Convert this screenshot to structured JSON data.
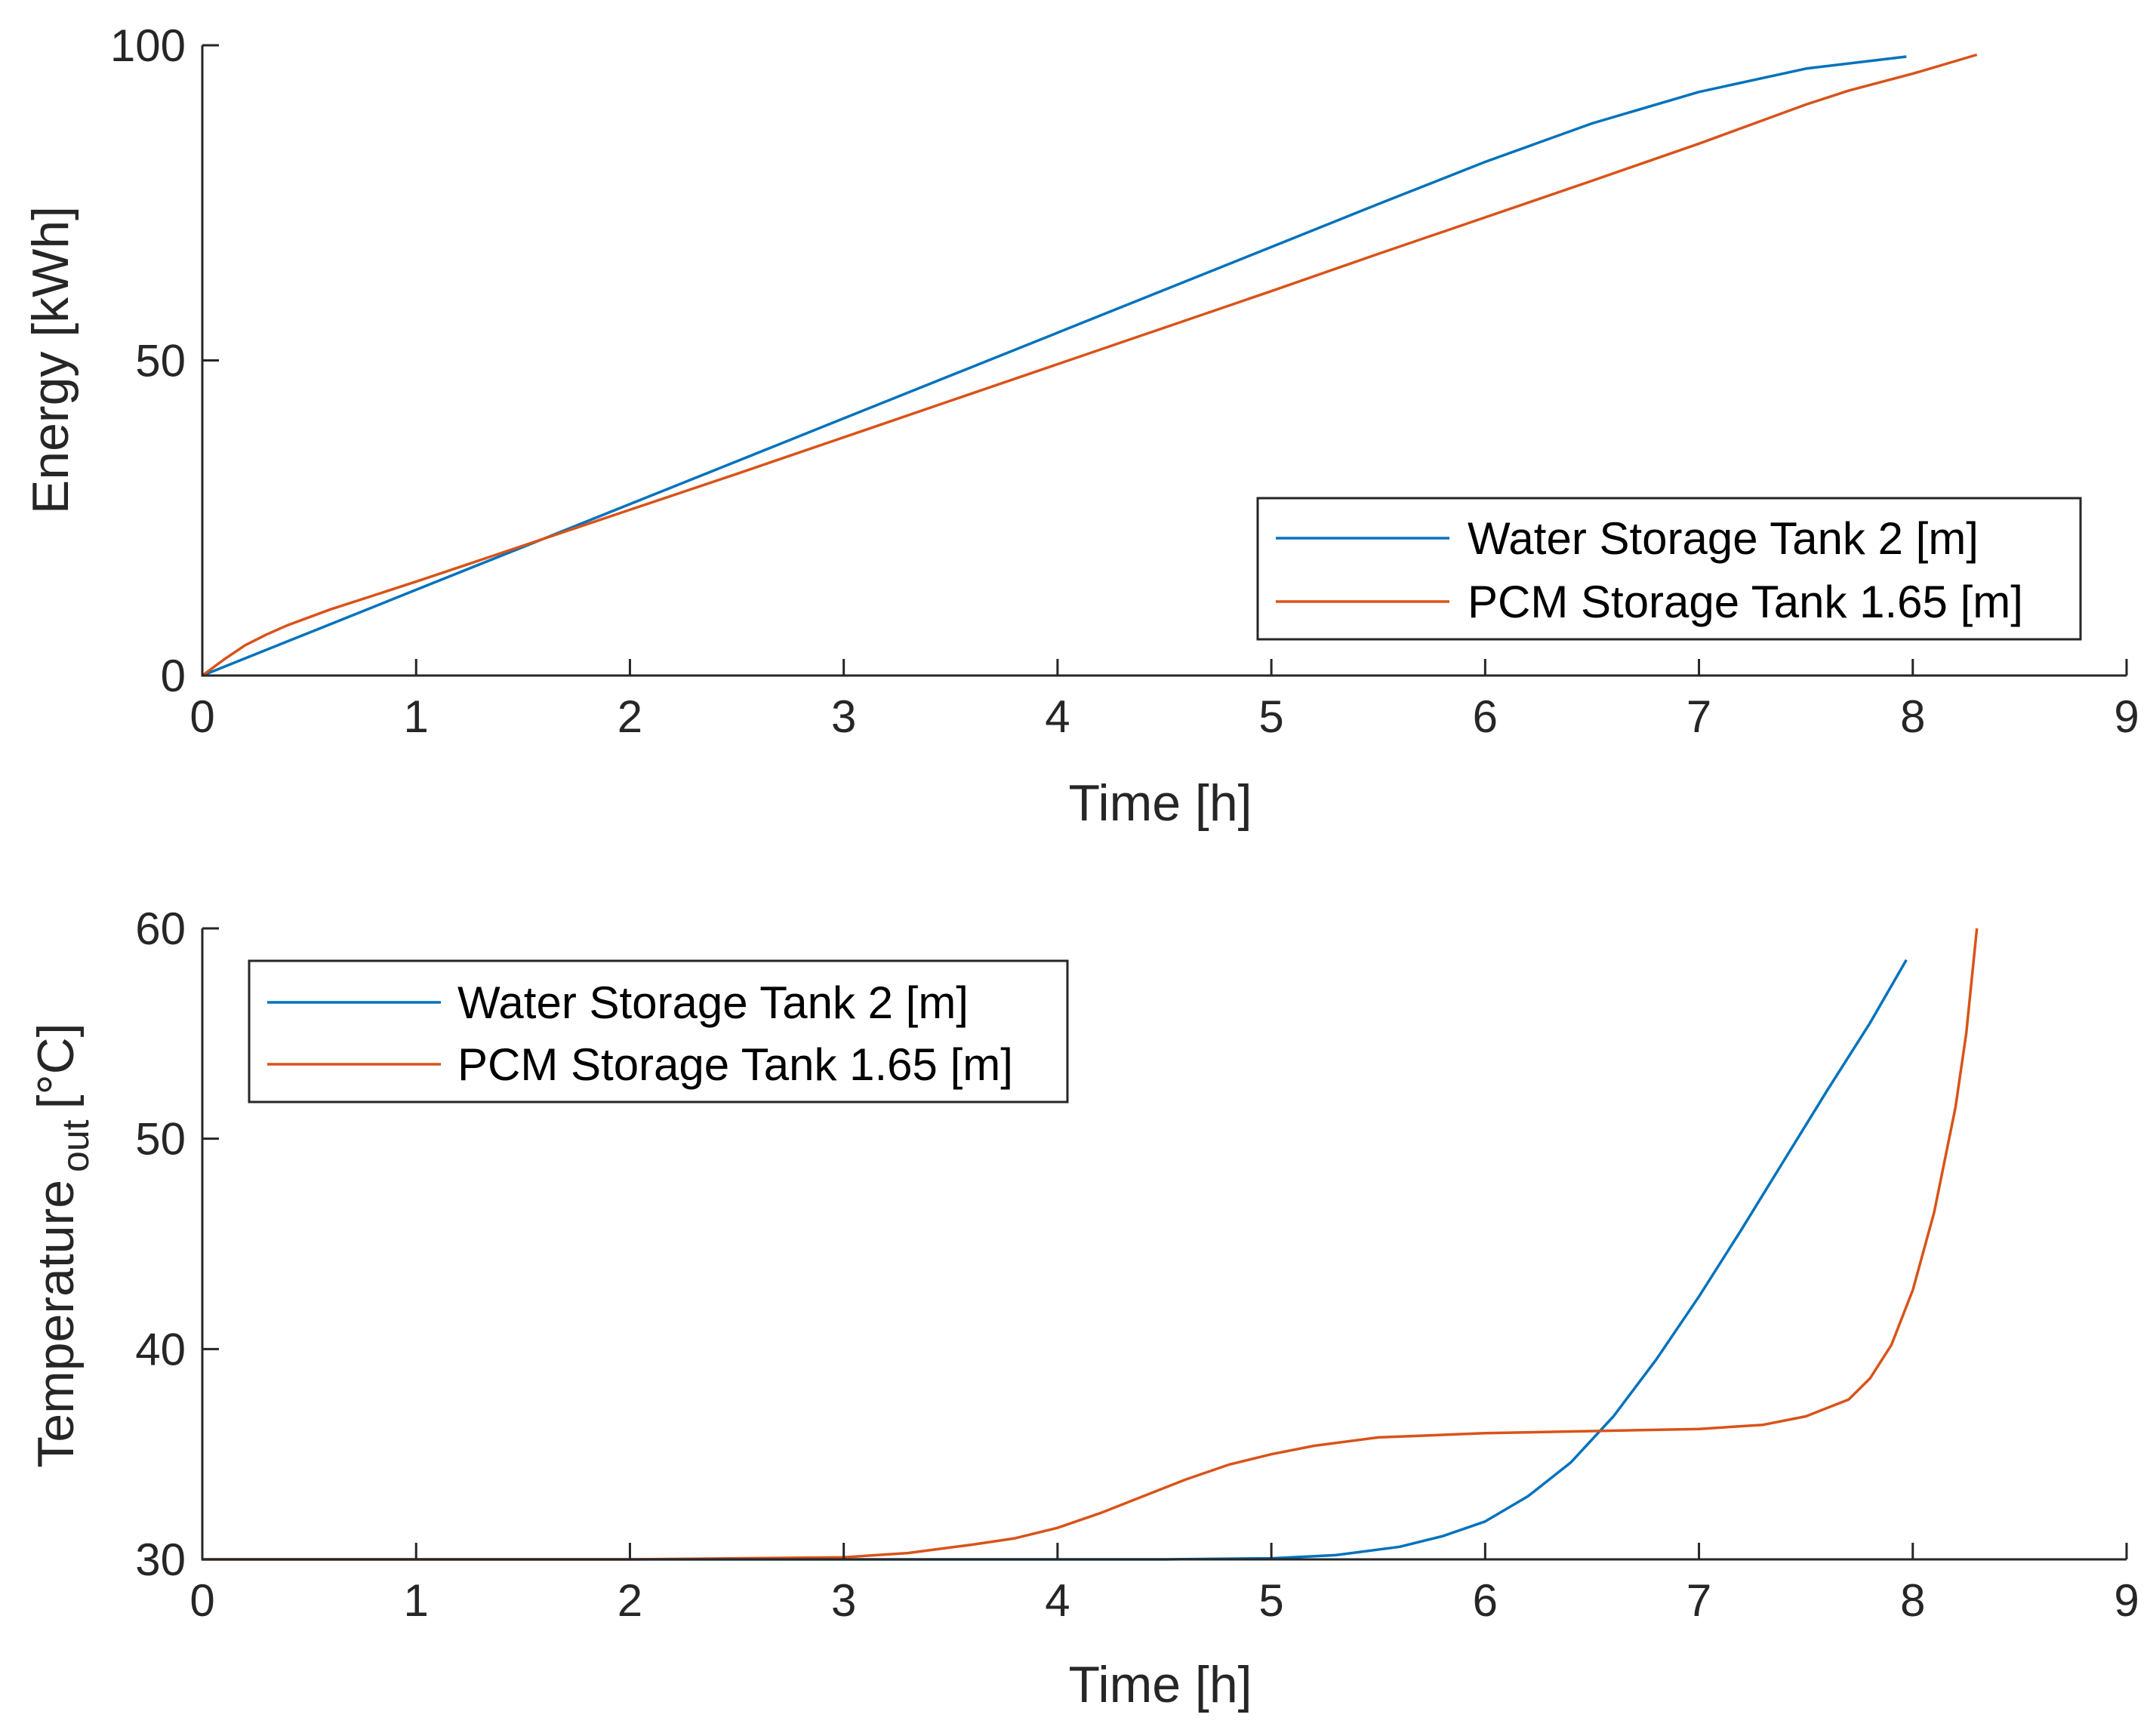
{
  "chart_data": [
    {
      "type": "line",
      "title": "",
      "xlabel": "Time [h]",
      "ylabel": "Energy [kWh]",
      "xlim": [
        0,
        9
      ],
      "ylim": [
        0,
        100
      ],
      "xticks": [
        "0",
        "1",
        "2",
        "3",
        "4",
        "5",
        "6",
        "7",
        "8",
        "9"
      ],
      "yticks": [
        "0",
        "50",
        "100"
      ],
      "grid": false,
      "legend_position": "bottom-right",
      "series": [
        {
          "name": "Water Storage Tank 2 [m]",
          "color": "#0072BD",
          "x": [
            0,
            0.5,
            1,
            1.5,
            2,
            2.5,
            3,
            3.5,
            4,
            4.5,
            5,
            5.5,
            6,
            6.5,
            7,
            7.5,
            7.97
          ],
          "y": [
            0,
            6.8,
            13.6,
            20.4,
            27.2,
            34,
            40.8,
            47.6,
            54.4,
            61.2,
            68,
            74.8,
            81.5,
            87.6,
            92.6,
            96.3,
            98.2
          ]
        },
        {
          "name": "PCM Storage Tank 1.65 [m]",
          "color": "#D95319",
          "x": [
            0,
            0.1,
            0.2,
            0.3,
            0.4,
            0.6,
            0.8,
            1,
            1.5,
            2,
            2.5,
            3,
            3.5,
            4,
            4.5,
            5,
            5.5,
            6,
            6.5,
            7,
            7.5,
            7.7,
            8,
            8.3
          ],
          "y": [
            0,
            2.5,
            4.8,
            6.5,
            8,
            10.5,
            12.7,
            14.9,
            20.6,
            26.3,
            32,
            37.8,
            43.6,
            49.4,
            55.2,
            61,
            66.9,
            72.7,
            78.5,
            84.4,
            90.6,
            92.8,
            95.5,
            98.5
          ]
        }
      ]
    },
    {
      "type": "line",
      "title": "",
      "xlabel": "Time [h]",
      "ylabel_main": "Temperature",
      "ylabel_sub": "out",
      "ylabel_unit": "[°C]",
      "xlim": [
        0,
        9
      ],
      "ylim": [
        30,
        60
      ],
      "xticks": [
        "0",
        "1",
        "2",
        "3",
        "4",
        "5",
        "6",
        "7",
        "8",
        "9"
      ],
      "yticks": [
        "30",
        "40",
        "50",
        "60"
      ],
      "grid": false,
      "legend_position": "top-left",
      "series": [
        {
          "name": "Water Storage Tank 2 [m]",
          "color": "#0072BD",
          "x": [
            0,
            1,
            2,
            3,
            4,
            4.5,
            5,
            5.3,
            5.6,
            5.8,
            6,
            6.2,
            6.4,
            6.6,
            6.8,
            7,
            7.2,
            7.4,
            7.6,
            7.8,
            7.97
          ],
          "y": [
            30,
            30,
            30,
            30,
            30,
            30,
            30.05,
            30.2,
            30.6,
            31.1,
            31.8,
            33,
            34.6,
            36.8,
            39.5,
            42.5,
            45.7,
            49,
            52.3,
            55.5,
            58.5
          ]
        },
        {
          "name": "PCM Storage Tank 1.65 [m]",
          "color": "#D95319",
          "x": [
            0,
            1,
            2,
            3,
            3.3,
            3.6,
            3.8,
            4,
            4.2,
            4.4,
            4.6,
            4.8,
            5,
            5.2,
            5.5,
            6,
            6.5,
            7,
            7.3,
            7.5,
            7.7,
            7.8,
            7.9,
            8,
            8.1,
            8.2,
            8.25,
            8.3
          ],
          "y": [
            30,
            30,
            30,
            30.1,
            30.3,
            30.7,
            31,
            31.5,
            32.2,
            33,
            33.8,
            34.5,
            35,
            35.4,
            35.8,
            36,
            36.1,
            36.2,
            36.4,
            36.8,
            37.6,
            38.6,
            40.2,
            42.8,
            46.5,
            51.5,
            55,
            60
          ]
        }
      ]
    }
  ]
}
